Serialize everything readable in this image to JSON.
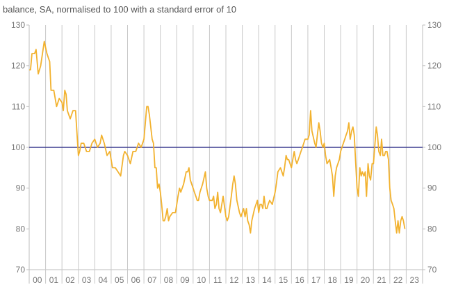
{
  "subtitle": "balance, SA, normalised to 100 with a standard error of 10",
  "chart_data": {
    "type": "line",
    "title": "",
    "subtitle": "balance, SA, normalised to 100 with a standard error of 10",
    "xlabel": "",
    "ylabel": "",
    "ylim": [
      70,
      130
    ],
    "y_ticks": [
      70,
      80,
      90,
      100,
      110,
      120,
      130
    ],
    "x_tick_labels": [
      "00",
      "01",
      "02",
      "03",
      "04",
      "05",
      "06",
      "07",
      "08",
      "09",
      "10",
      "11",
      "12",
      "13",
      "14",
      "15",
      "16",
      "17",
      "18",
      "19",
      "20",
      "21",
      "22",
      "23"
    ],
    "x_range": [
      2000,
      2024
    ],
    "grid": "vertical",
    "right_axis_mirror": true,
    "reference_line": {
      "y": 100,
      "color": "#3b3b8f"
    },
    "series": [
      {
        "color": "#f2b22f",
        "points": [
          [
            2000.0,
            119
          ],
          [
            2000.08,
            119
          ],
          [
            2000.17,
            123
          ],
          [
            2000.33,
            123
          ],
          [
            2000.42,
            124
          ],
          [
            2000.55,
            118
          ],
          [
            2000.7,
            120
          ],
          [
            2000.92,
            126
          ],
          [
            2001.08,
            123
          ],
          [
            2001.25,
            121
          ],
          [
            2001.33,
            114
          ],
          [
            2001.5,
            114
          ],
          [
            2001.67,
            110
          ],
          [
            2001.83,
            112
          ],
          [
            2002.0,
            111
          ],
          [
            2002.08,
            109
          ],
          [
            2002.17,
            114
          ],
          [
            2002.25,
            113
          ],
          [
            2002.33,
            109
          ],
          [
            2002.5,
            107
          ],
          [
            2002.67,
            109
          ],
          [
            2002.83,
            109
          ],
          [
            2003.0,
            98
          ],
          [
            2003.08,
            99
          ],
          [
            2003.17,
            101
          ],
          [
            2003.33,
            101
          ],
          [
            2003.5,
            99
          ],
          [
            2003.67,
            99
          ],
          [
            2003.83,
            101
          ],
          [
            2004.0,
            102
          ],
          [
            2004.17,
            100
          ],
          [
            2004.33,
            101
          ],
          [
            2004.42,
            103
          ],
          [
            2004.58,
            101
          ],
          [
            2004.75,
            98
          ],
          [
            2004.92,
            99
          ],
          [
            2005.0,
            97
          ],
          [
            2005.08,
            95
          ],
          [
            2005.25,
            95
          ],
          [
            2005.42,
            94
          ],
          [
            2005.58,
            93
          ],
          [
            2005.75,
            98
          ],
          [
            2005.83,
            99
          ],
          [
            2006.0,
            98
          ],
          [
            2006.17,
            96
          ],
          [
            2006.33,
            99
          ],
          [
            2006.5,
            99
          ],
          [
            2006.67,
            101
          ],
          [
            2006.83,
            100
          ],
          [
            2007.0,
            102
          ],
          [
            2007.17,
            110
          ],
          [
            2007.25,
            110
          ],
          [
            2007.33,
            108
          ],
          [
            2007.5,
            102
          ],
          [
            2007.58,
            101
          ],
          [
            2007.67,
            95
          ],
          [
            2007.75,
            95
          ],
          [
            2007.83,
            90
          ],
          [
            2007.92,
            91
          ],
          [
            2008.0,
            89
          ],
          [
            2008.08,
            86
          ],
          [
            2008.17,
            82
          ],
          [
            2008.25,
            82
          ],
          [
            2008.33,
            83
          ],
          [
            2008.42,
            85
          ],
          [
            2008.5,
            82
          ],
          [
            2008.58,
            83
          ],
          [
            2008.75,
            84
          ],
          [
            2008.92,
            84
          ],
          [
            2009.0,
            86
          ],
          [
            2009.08,
            88
          ],
          [
            2009.17,
            90
          ],
          [
            2009.25,
            89
          ],
          [
            2009.42,
            91
          ],
          [
            2009.58,
            94
          ],
          [
            2009.67,
            94
          ],
          [
            2009.75,
            95
          ],
          [
            2009.83,
            92
          ],
          [
            2010.0,
            90
          ],
          [
            2010.08,
            89
          ],
          [
            2010.17,
            88
          ],
          [
            2010.25,
            87
          ],
          [
            2010.33,
            87
          ],
          [
            2010.42,
            89
          ],
          [
            2010.58,
            91
          ],
          [
            2010.75,
            94
          ],
          [
            2010.83,
            90
          ],
          [
            2010.92,
            88
          ],
          [
            2011.0,
            87
          ],
          [
            2011.17,
            87
          ],
          [
            2011.25,
            88
          ],
          [
            2011.33,
            85
          ],
          [
            2011.42,
            86
          ],
          [
            2011.5,
            89
          ],
          [
            2011.58,
            85
          ],
          [
            2011.67,
            84
          ],
          [
            2011.83,
            88
          ],
          [
            2012.0,
            83
          ],
          [
            2012.08,
            82
          ],
          [
            2012.17,
            83
          ],
          [
            2012.33,
            88
          ],
          [
            2012.42,
            91
          ],
          [
            2012.5,
            93
          ],
          [
            2012.58,
            91
          ],
          [
            2012.67,
            87
          ],
          [
            2012.83,
            84
          ],
          [
            2012.92,
            83
          ],
          [
            2013.0,
            84
          ],
          [
            2013.08,
            85
          ],
          [
            2013.17,
            83
          ],
          [
            2013.25,
            85
          ],
          [
            2013.33,
            82
          ],
          [
            2013.42,
            81
          ],
          [
            2013.5,
            79
          ],
          [
            2013.58,
            82
          ],
          [
            2013.75,
            85
          ],
          [
            2013.92,
            87
          ],
          [
            2014.0,
            84
          ],
          [
            2014.08,
            86
          ],
          [
            2014.17,
            86
          ],
          [
            2014.25,
            85
          ],
          [
            2014.33,
            88
          ],
          [
            2014.42,
            85
          ],
          [
            2014.5,
            85
          ],
          [
            2014.58,
            86
          ],
          [
            2014.67,
            87
          ],
          [
            2014.83,
            86
          ],
          [
            2015.0,
            89
          ],
          [
            2015.08,
            91
          ],
          [
            2015.17,
            94
          ],
          [
            2015.33,
            95
          ],
          [
            2015.5,
            93
          ],
          [
            2015.58,
            95
          ],
          [
            2015.67,
            98
          ],
          [
            2015.75,
            97
          ],
          [
            2015.83,
            97
          ],
          [
            2016.0,
            95
          ],
          [
            2016.08,
            97
          ],
          [
            2016.17,
            99
          ],
          [
            2016.25,
            97
          ],
          [
            2016.33,
            96
          ],
          [
            2016.42,
            97
          ],
          [
            2016.58,
            99
          ],
          [
            2016.67,
            100
          ],
          [
            2016.83,
            102
          ],
          [
            2017.0,
            102
          ],
          [
            2017.08,
            103
          ],
          [
            2017.17,
            109
          ],
          [
            2017.25,
            104
          ],
          [
            2017.42,
            101
          ],
          [
            2017.5,
            100
          ],
          [
            2017.58,
            103
          ],
          [
            2017.67,
            106
          ],
          [
            2017.75,
            104
          ],
          [
            2017.83,
            101
          ],
          [
            2017.92,
            100
          ],
          [
            2018.0,
            101
          ],
          [
            2018.08,
            98
          ],
          [
            2018.17,
            96
          ],
          [
            2018.33,
            97
          ],
          [
            2018.42,
            95
          ],
          [
            2018.5,
            93
          ],
          [
            2018.58,
            88
          ],
          [
            2018.67,
            93
          ],
          [
            2018.75,
            95
          ],
          [
            2018.92,
            97
          ],
          [
            2019.0,
            99
          ],
          [
            2019.08,
            100
          ],
          [
            2019.25,
            102
          ],
          [
            2019.33,
            103
          ],
          [
            2019.42,
            104
          ],
          [
            2019.5,
            106
          ],
          [
            2019.58,
            102
          ],
          [
            2019.67,
            104
          ],
          [
            2019.75,
            105
          ],
          [
            2019.83,
            103
          ],
          [
            2019.92,
            96
          ],
          [
            2020.0,
            90
          ],
          [
            2020.08,
            88
          ],
          [
            2020.17,
            95
          ],
          [
            2020.25,
            93
          ],
          [
            2020.33,
            94
          ],
          [
            2020.42,
            93
          ],
          [
            2020.5,
            94
          ],
          [
            2020.58,
            88
          ],
          [
            2020.67,
            96
          ],
          [
            2020.75,
            93
          ],
          [
            2020.83,
            92
          ],
          [
            2020.92,
            96
          ],
          [
            2021.0,
            96
          ],
          [
            2021.08,
            100
          ],
          [
            2021.17,
            105
          ],
          [
            2021.25,
            103
          ],
          [
            2021.33,
            99
          ],
          [
            2021.42,
            98
          ],
          [
            2021.5,
            102
          ],
          [
            2021.58,
            98
          ],
          [
            2021.67,
            98
          ],
          [
            2021.75,
            99
          ],
          [
            2021.83,
            99
          ],
          [
            2021.92,
            97
          ],
          [
            2022.0,
            90
          ],
          [
            2022.08,
            87
          ],
          [
            2022.17,
            86
          ],
          [
            2022.25,
            85
          ],
          [
            2022.33,
            82
          ],
          [
            2022.42,
            79
          ],
          [
            2022.5,
            82
          ],
          [
            2022.58,
            79
          ],
          [
            2022.67,
            82
          ],
          [
            2022.75,
            83
          ],
          [
            2022.83,
            82
          ],
          [
            2022.92,
            80
          ]
        ]
      }
    ]
  }
}
